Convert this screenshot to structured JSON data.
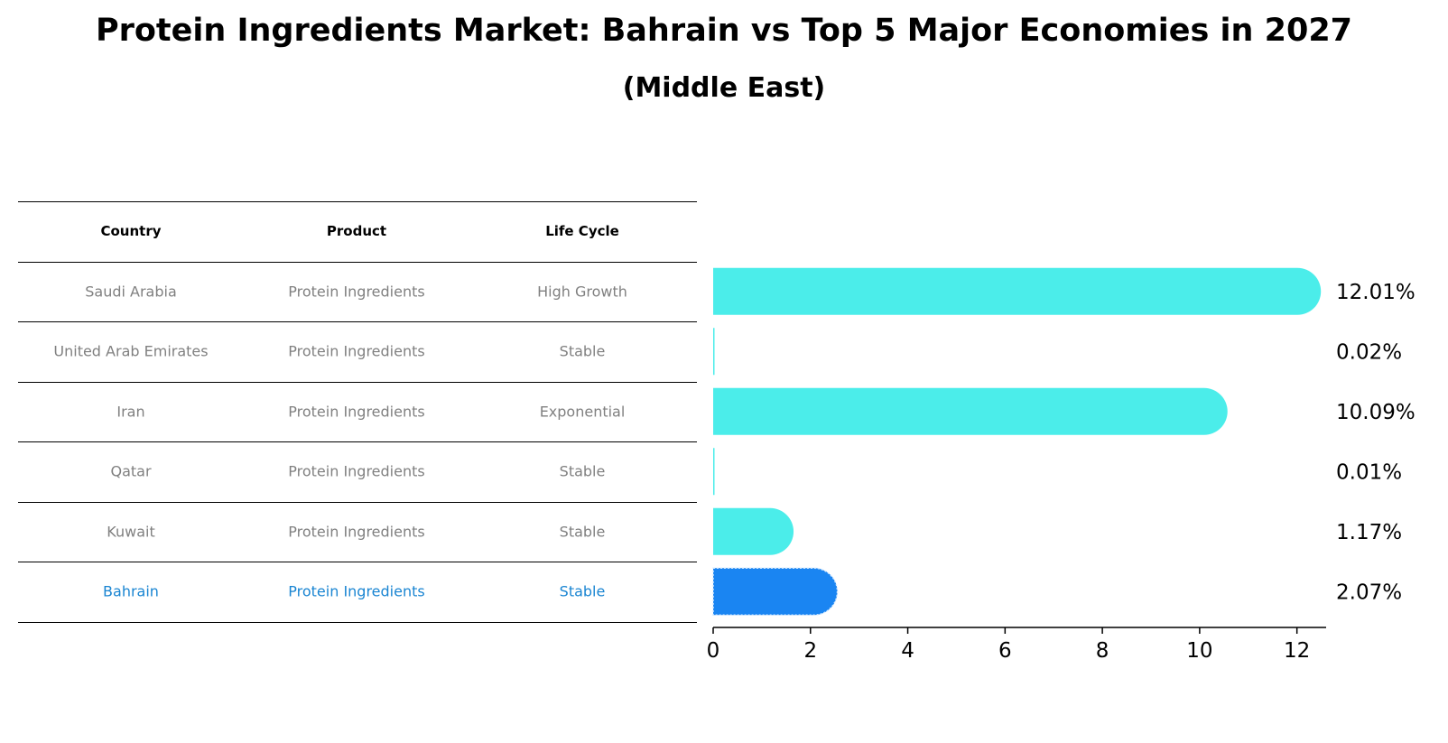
{
  "title": "Protein Ingredients Market: Bahrain vs Top 5 Major Economies in 2027",
  "subtitle": "(Middle East)",
  "table": {
    "headers": [
      "Country",
      "Product",
      "Life Cycle"
    ],
    "rows": [
      {
        "country": "Saudi Arabia",
        "product": "Protein Ingredients",
        "life_cycle": "High Growth"
      },
      {
        "country": "United Arab Emirates",
        "product": "Protein Ingredients",
        "life_cycle": "Stable"
      },
      {
        "country": "Iran",
        "product": "Protein Ingredients",
        "life_cycle": "Exponential"
      },
      {
        "country": "Qatar",
        "product": "Protein Ingredients",
        "life_cycle": "Stable"
      },
      {
        "country": "Kuwait",
        "product": "Protein Ingredients",
        "life_cycle": "Stable"
      },
      {
        "country": "Bahrain",
        "product": "Protein Ingredients",
        "life_cycle": "Stable"
      }
    ]
  },
  "chart_data": {
    "type": "bar",
    "orientation": "horizontal",
    "categories": [
      "Saudi Arabia",
      "United Arab Emirates",
      "Iran",
      "Qatar",
      "Kuwait",
      "Bahrain"
    ],
    "values": [
      12.01,
      0.02,
      10.09,
      0.01,
      1.17,
      2.07
    ],
    "value_labels": [
      "12.01%",
      "0.02%",
      "10.09%",
      "0.01%",
      "1.17%",
      "2.07%"
    ],
    "highlight": "Bahrain",
    "xlim": [
      0,
      12.6
    ],
    "xticks": [
      0,
      2,
      4,
      6,
      8,
      10,
      12
    ],
    "xlabel": "",
    "ylabel": "",
    "grid": false,
    "colors": {
      "default": "#4bedea",
      "highlight": "#1a85f2",
      "highlight_text": "#1a85d2"
    }
  }
}
